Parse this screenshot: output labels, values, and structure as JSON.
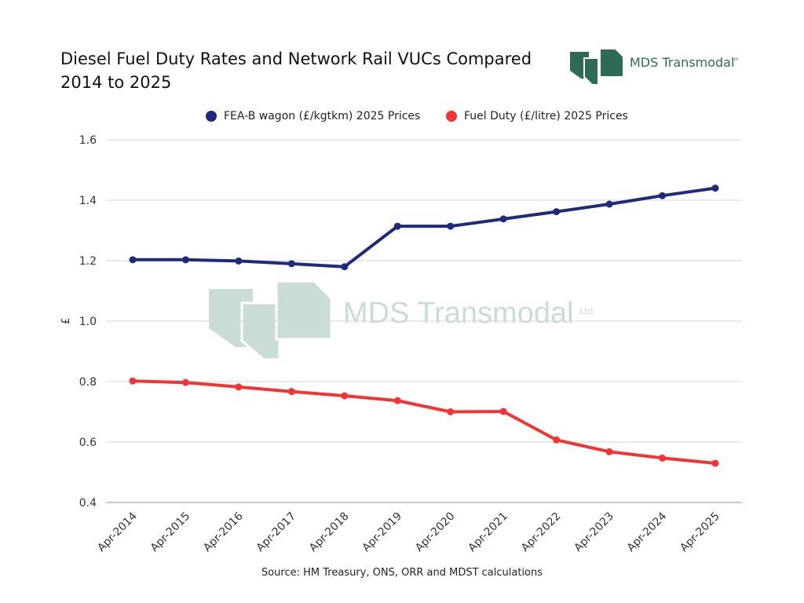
{
  "title_line1": "Diesel Fuel Duty Rates and Network Rail VUCs Compared",
  "title_line2": "2014 to 2025",
  "logo": {
    "name": "MDS Transmodal",
    "suffix": "Ltd",
    "color": "#2e6b55"
  },
  "watermark": {
    "name": "MDS Transmodal",
    "suffix": "Ltd"
  },
  "source": "Source: HM Treasury, ONS, ORR and MDST calculations",
  "chart_data": {
    "type": "line",
    "title": "Diesel Fuel Duty Rates and Network Rail VUCs Compared 2014 to 2025",
    "ylabel": "£",
    "xlabel": "",
    "ylim": [
      0.4,
      1.6
    ],
    "yticks": [
      0.4,
      0.6,
      0.8,
      1.0,
      1.2,
      1.4,
      1.6
    ],
    "ytick_labels": [
      "0.4",
      "0.6",
      "0.8",
      "1.0",
      "1.2",
      "1.4",
      "1.6"
    ],
    "grid": true,
    "legend_position": "top",
    "categories": [
      "Apr-2014",
      "Apr-2015",
      "Apr-2016",
      "Apr-2017",
      "Apr-2018",
      "Apr-2019",
      "Apr-2020",
      "Apr-2021",
      "Apr-2022",
      "Apr-2023",
      "Apr-2024",
      "Apr-2025"
    ],
    "series": [
      {
        "name": "FEA-B wagon (£/kgtkm) 2025 Prices",
        "color": "#1f2a7c",
        "values": [
          1.203,
          1.203,
          1.199,
          1.19,
          1.18,
          1.314,
          1.314,
          1.338,
          1.362,
          1.387,
          1.415,
          1.44
        ]
      },
      {
        "name": "Fuel Duty (£/litre) 2025 Prices",
        "color": "#f23434",
        "values": [
          0.802,
          0.797,
          0.782,
          0.767,
          0.753,
          0.737,
          0.7,
          0.701,
          0.607,
          0.568,
          0.547,
          0.53
        ]
      }
    ]
  }
}
